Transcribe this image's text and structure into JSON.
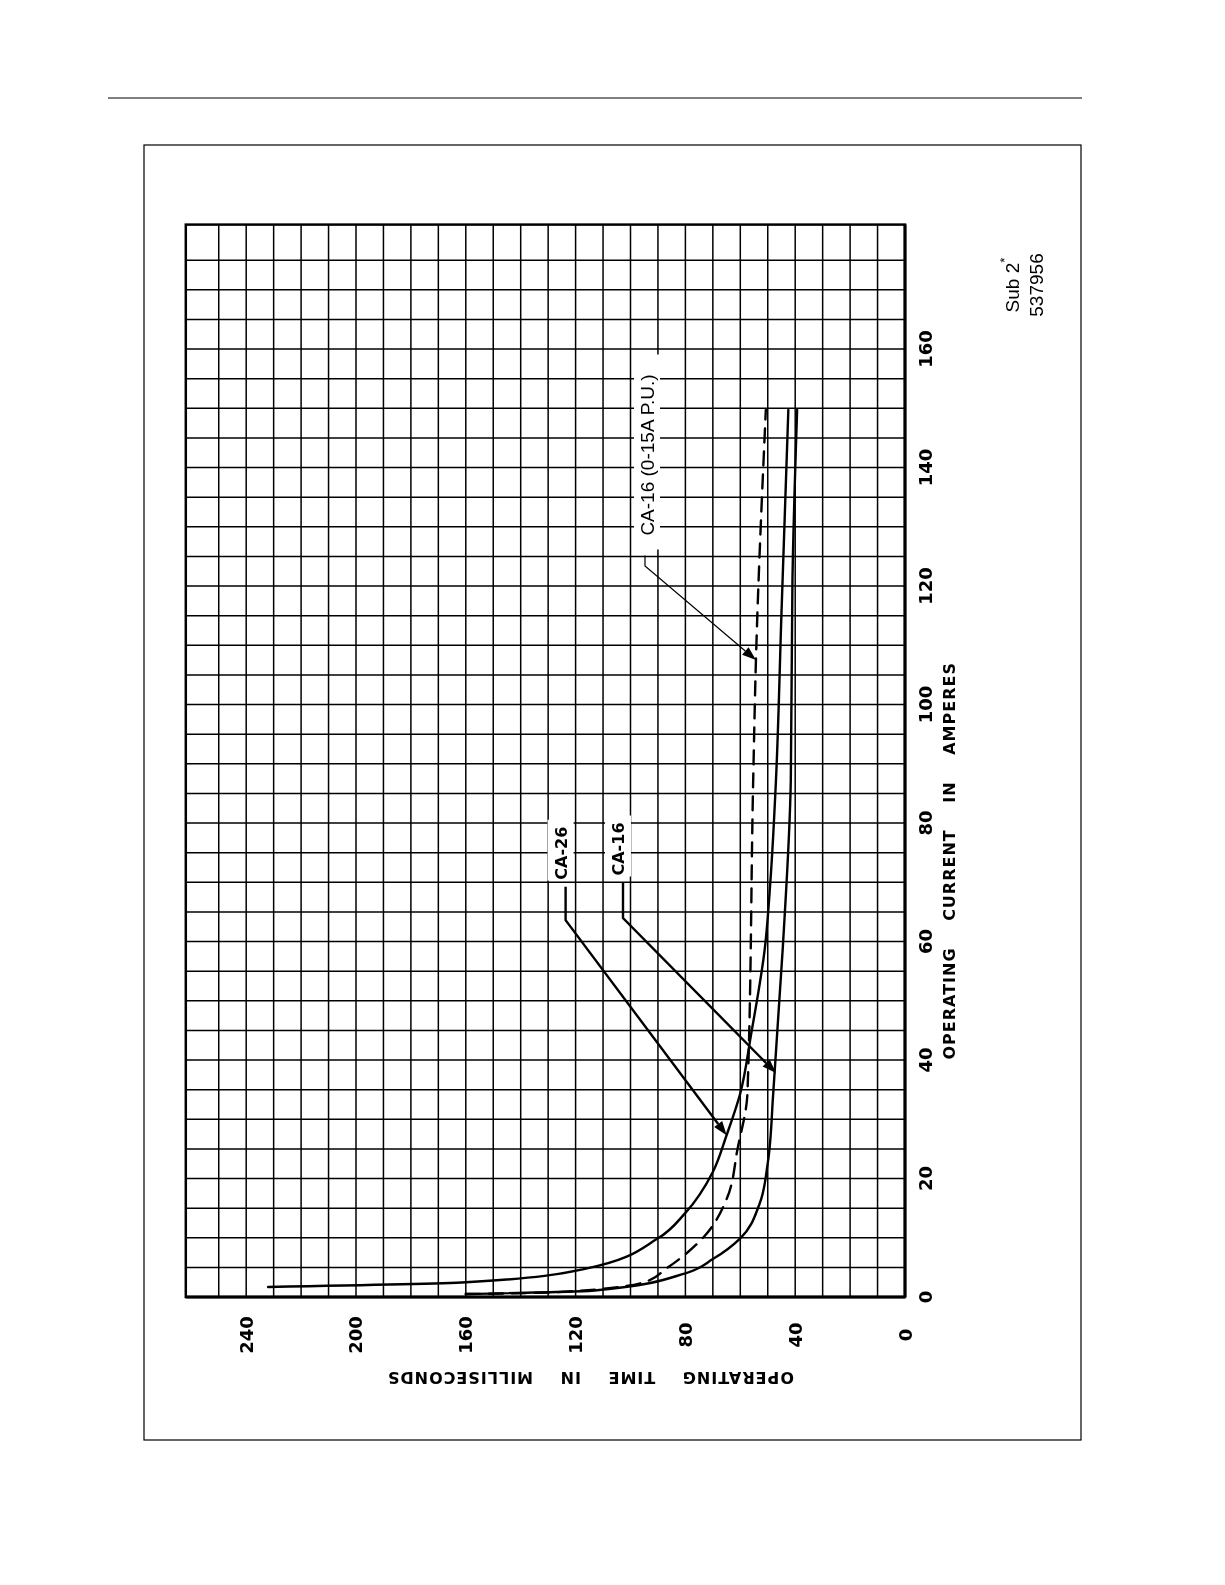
{
  "chart_data": {
    "type": "line",
    "xlabel": "OPERATING TIME IN MILLISECONDS",
    "ylabel": "OPERATING CURRENT IN AMPERES",
    "xlim": [
      262,
      0
    ],
    "ylim": [
      0,
      181
    ],
    "xticks": [
      0,
      {
        "value": 10,
        "label": null
      },
      {
        "value": 20,
        "label": null
      },
      {
        "value": 30,
        "label": null
      },
      40,
      {
        "value": 50,
        "label": null
      },
      {
        "value": 60,
        "label": null
      },
      {
        "value": 70,
        "label": null
      },
      80,
      {
        "value": 90,
        "label": null
      },
      {
        "value": 100,
        "label": null
      },
      {
        "value": 110,
        "label": null
      },
      120,
      {
        "value": 130,
        "label": null
      },
      {
        "value": 140,
        "label": null
      },
      {
        "value": 150,
        "label": null
      },
      160,
      {
        "value": 170,
        "label": null
      },
      {
        "value": 180,
        "label": null
      },
      {
        "value": 190,
        "label": null
      },
      200,
      {
        "value": 210,
        "label": null
      },
      {
        "value": 220,
        "label": null
      },
      {
        "value": 230,
        "label": null
      },
      240,
      {
        "value": 250,
        "label": null
      }
    ],
    "yticks": [
      0,
      {
        "value": 5,
        "label": null
      },
      {
        "value": 10,
        "label": null
      },
      {
        "value": 15,
        "label": null
      },
      20,
      {
        "value": 25,
        "label": null
      },
      {
        "value": 30,
        "label": null
      },
      {
        "value": 35,
        "label": null
      },
      40,
      {
        "value": 45,
        "label": null
      },
      {
        "value": 50,
        "label": null
      },
      {
        "value": 55,
        "label": null
      },
      60,
      {
        "value": 65,
        "label": null
      },
      {
        "value": 70,
        "label": null
      },
      {
        "value": 75,
        "label": null
      },
      80,
      {
        "value": 85,
        "label": null
      },
      {
        "value": 90,
        "label": null
      },
      {
        "value": 95,
        "label": null
      },
      100,
      {
        "value": 105,
        "label": null
      },
      {
        "value": 110,
        "label": null
      },
      {
        "value": 115,
        "label": null
      },
      120,
      {
        "value": 125,
        "label": null
      },
      {
        "value": 130,
        "label": null
      },
      {
        "value": 135,
        "label": null
      },
      140,
      {
        "value": 145,
        "label": null
      },
      {
        "value": 150,
        "label": null
      },
      {
        "value": 155,
        "label": null
      },
      160,
      {
        "value": 165,
        "label": null
      },
      {
        "value": 170,
        "label": null
      },
      {
        "value": 175,
        "label": null
      }
    ],
    "grid": true,
    "series": [
      {
        "color": "#000000",
        "line_style": "solid",
        "x": [
          232,
          160,
          117,
          90,
          80,
          70,
          65,
          60,
          56,
          51,
          49,
          47,
          45,
          42.5
        ],
        "values": [
          1.7,
          2.5,
          4.7,
          9.9,
          14.2,
          21.1,
          27.3,
          34.4,
          44.5,
          59.1,
          70.4,
          87.3,
          115.4,
          149.7
        ]
      },
      {
        "color": "#000000",
        "line_style": "solid",
        "x": [
          160,
          113,
          80,
          70,
          60,
          53,
          50,
          48,
          44.5,
          41.6,
          41,
          39.3
        ],
        "values": [
          0.5,
          1.1,
          4.0,
          6.4,
          9.9,
          15.7,
          22.6,
          34.4,
          59.1,
          87.3,
          121,
          149.7
        ]
      },
      {
        "color": "#000000",
        "line_style": "dashed",
        "x": [
          160,
          127,
          95,
          87,
          73,
          65,
          61,
          57.4,
          55.3,
          54.3,
          50.7
        ],
        "values": [
          0.5,
          0.8,
          2.5,
          4.8,
          10.3,
          16.5,
          25,
          34.4,
          87.3,
          107.5,
          149.7
        ]
      }
    ],
    "annotations": [
      "CA-26",
      "CA-16",
      "CA-16 (0-15A P.U.)",
      "Sub 2$^{*}$",
      "537956"
    ]
  }
}
